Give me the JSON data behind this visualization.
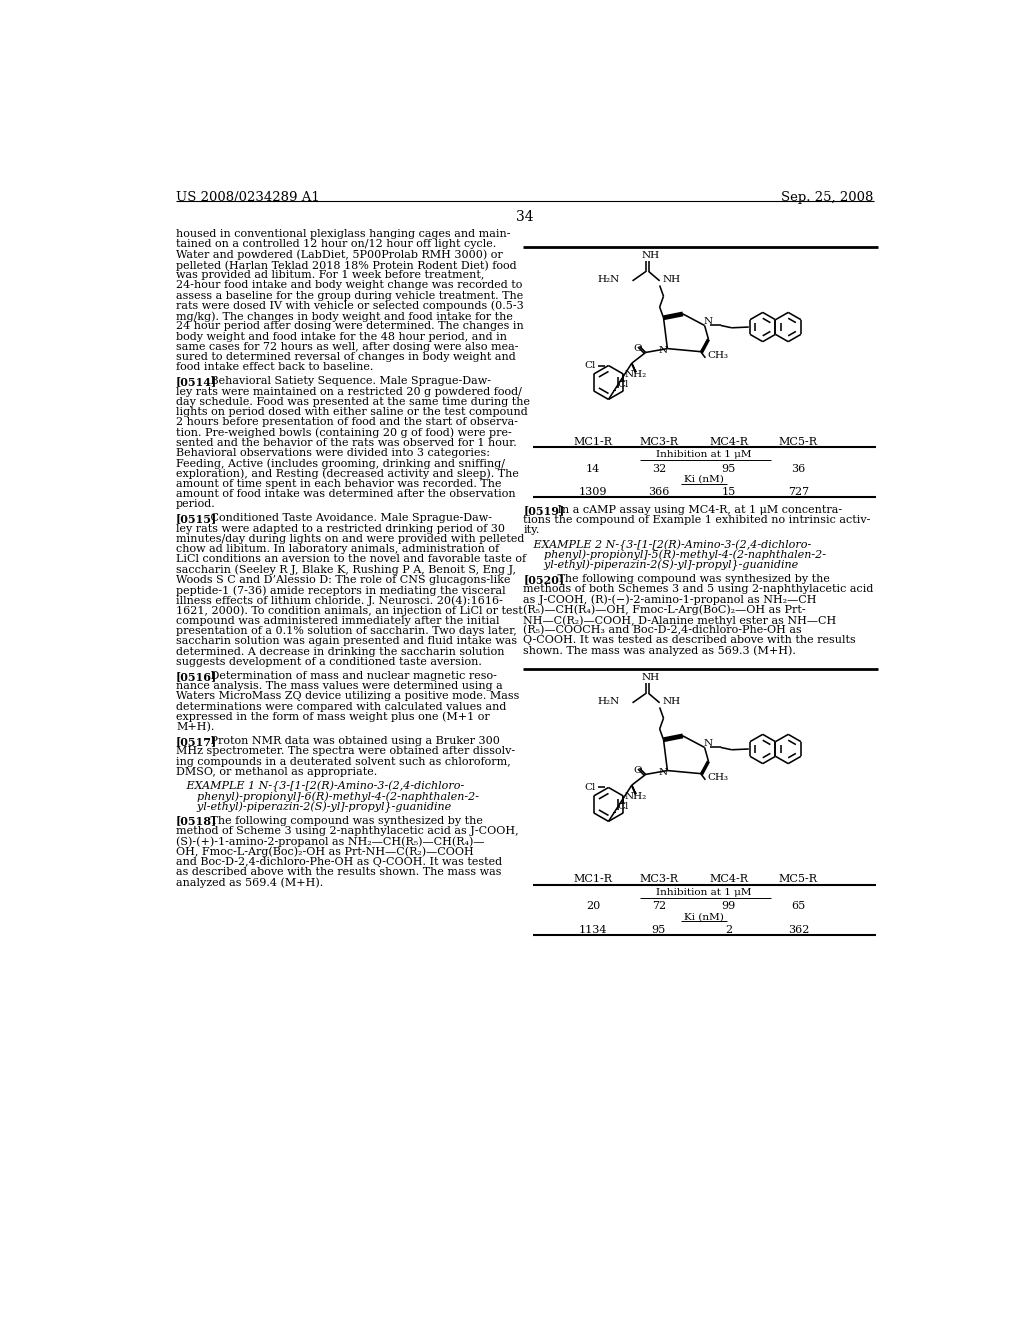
{
  "background_color": "#ffffff",
  "page_number": "34",
  "header_left": "US 2008/0234289 A1",
  "header_right": "Sep. 25, 2008",
  "left_column_lines": [
    [
      "body",
      "housed in conventional plexiglass hanging cages and main-"
    ],
    [
      "body",
      "tained on a controlled 12 hour on/12 hour off light cycle."
    ],
    [
      "body",
      "Water and powdered (LabDiet, 5P00Prolab RMH 3000) or"
    ],
    [
      "body",
      "pelleted (Harlan Teklad 2018 18% Protein Rodent Diet) food"
    ],
    [
      "body",
      "was provided ad libitum. For 1 week before treatment,"
    ],
    [
      "body",
      "24-hour food intake and body weight change was recorded to"
    ],
    [
      "body",
      "assess a baseline for the group during vehicle treatment. The"
    ],
    [
      "body",
      "rats were dosed IV with vehicle or selected compounds (0.5-3"
    ],
    [
      "body",
      "mg/kg). The changes in body weight and food intake for the"
    ],
    [
      "body",
      "24 hour period after dosing were determined. The changes in"
    ],
    [
      "body",
      "body weight and food intake for the 48 hour period, and in"
    ],
    [
      "body",
      "same cases for 72 hours as well, after dosing were also mea-"
    ],
    [
      "body",
      "sured to determined reversal of changes in body weight and"
    ],
    [
      "body",
      "food intake effect back to baseline."
    ],
    [
      "gap",
      ""
    ],
    [
      "bold_para",
      "[0514]",
      "   Behavioral Satiety Sequence. Male Sprague-Daw-"
    ],
    [
      "body",
      "ley rats were maintained on a restricted 20 g powdered food/"
    ],
    [
      "body",
      "day schedule. Food was presented at the same time during the"
    ],
    [
      "body",
      "lights on period dosed with either saline or the test compound"
    ],
    [
      "body",
      "2 hours before presentation of food and the start of observa-"
    ],
    [
      "body",
      "tion. Pre-weighed bowls (containing 20 g of food) were pre-"
    ],
    [
      "body",
      "sented and the behavior of the rats was observed for 1 hour."
    ],
    [
      "body",
      "Behavioral observations were divided into 3 categories:"
    ],
    [
      "body",
      "Feeding, Active (includes grooming, drinking and sniffing/"
    ],
    [
      "body",
      "exploration), and Resting (decreased activity and sleep). The"
    ],
    [
      "body",
      "amount of time spent in each behavior was recorded. The"
    ],
    [
      "body",
      "amount of food intake was determined after the observation"
    ],
    [
      "body",
      "period."
    ],
    [
      "gap",
      ""
    ],
    [
      "bold_para",
      "[0515]",
      "   Conditioned Taste Avoidance. Male Sprague-Daw-"
    ],
    [
      "body",
      "ley rats were adapted to a restricted drinking period of 30"
    ],
    [
      "body",
      "minutes/day during lights on and were provided with pelleted"
    ],
    [
      "body",
      "chow ad libitum. In laboratory animals, administration of"
    ],
    [
      "body",
      "LiCl conditions an aversion to the novel and favorable taste of"
    ],
    [
      "body",
      "saccharin (Seeley R J, Blake K, Rushing P A, Benoit S, Eng J,"
    ],
    [
      "body",
      "Woods S C and D’Alessio D: The role of CNS glucagons-like"
    ],
    [
      "body",
      "peptide-1 (7-36) amide receptors in mediating the visceral"
    ],
    [
      "body",
      "illness effects of lithium chloride. J. Neurosci. 20(4):1616-"
    ],
    [
      "body",
      "1621, 2000). To condition animals, an injection of LiCl or test"
    ],
    [
      "body",
      "compound was administered immediately after the initial"
    ],
    [
      "body",
      "presentation of a 0.1% solution of saccharin. Two days later,"
    ],
    [
      "body",
      "saccharin solution was again presented and fluid intake was"
    ],
    [
      "body",
      "determined. A decrease in drinking the saccharin solution"
    ],
    [
      "body",
      "suggests development of a conditioned taste aversion."
    ],
    [
      "gap",
      ""
    ],
    [
      "bold_para",
      "[0516]",
      "   Determination of mass and nuclear magnetic reso-"
    ],
    [
      "body",
      "nance analysis. The mass values were determined using a"
    ],
    [
      "body",
      "Waters MicroMass ZQ device utilizing a positive mode. Mass"
    ],
    [
      "body",
      "determinations were compared with calculated values and"
    ],
    [
      "body",
      "expressed in the form of mass weight plus one (M+1 or"
    ],
    [
      "body",
      "M+H)."
    ],
    [
      "gap",
      ""
    ],
    [
      "bold_para",
      "[0517]",
      "   Proton NMR data was obtained using a Bruker 300"
    ],
    [
      "body",
      "MHz spectrometer. The spectra were obtained after dissolv-"
    ],
    [
      "body",
      "ing compounds in a deuterated solvent such as chloroform,"
    ],
    [
      "body",
      "DMSO, or methanol as appropriate."
    ],
    [
      "gap",
      ""
    ],
    [
      "example",
      "   EXAMPLE 1 N-{3-[1-[2(R)-Amino-3-(2,4-dichloro-"
    ],
    [
      "example",
      "      phenyl)-propionyl]-6(R)-methyl-4-(2-naphthalen-2-"
    ],
    [
      "example",
      "      yl-ethyl)-piperazin-2(S)-yl]-propyl}-guanidine"
    ],
    [
      "gap",
      ""
    ],
    [
      "bold_para",
      "[0518]",
      "   The following compound was synthesized by the"
    ],
    [
      "body",
      "method of Scheme 3 using 2-naphthylacetic acid as J-COOH,"
    ],
    [
      "body",
      "(S)-(+)-1-amino-2-propanol as NH₂—CH(R₅)—CH(R₄)—"
    ],
    [
      "body",
      "OH, Fmoc-L-Arg(Boc)₂-OH as Prt-NH—C(R₂)—COOH"
    ],
    [
      "body",
      "and Boc-D-2,4-dichloro-Phe-OH as Q-COOH. It was tested"
    ],
    [
      "body",
      "as described above with the results shown. The mass was"
    ],
    [
      "body",
      "analyzed as 569.4 (M+H)."
    ]
  ],
  "right_col_after_table1": [
    [
      "bold_para",
      "[0519]",
      "   In a cAMP assay using MC4-R, at 1 μM concentra-"
    ],
    [
      "body",
      "tions the compound of Example 1 exhibited no intrinsic activ-"
    ],
    [
      "body",
      "ity."
    ],
    [
      "gap",
      ""
    ],
    [
      "example",
      "   EXAMPLE 2 N-{3-[1-[2(R)-Amino-3-(2,4-dichloro-"
    ],
    [
      "example",
      "      phenyl)-propionyl]-5(R)-methyl-4-(2-naphthalen-2-"
    ],
    [
      "example",
      "      yl-ethyl)-piperazin-2(S)-yl]-propyl}-guanidine"
    ],
    [
      "gap",
      ""
    ],
    [
      "bold_para",
      "[0520]",
      "   The following compound was synthesized by the"
    ],
    [
      "body",
      "methods of both Schemes 3 and 5 using 2-naphthylacetic acid"
    ],
    [
      "body",
      "as J-COOH, (R)-(−)-2-amino-1-propanol as NH₂—CH"
    ],
    [
      "body",
      "(R₅)—CH(R₄)—OH, Fmoc-L-Arg(BoC)₂—OH as Prt-"
    ],
    [
      "body",
      "NH—C(R₂)—COOH, D-Alanine methyl ester as NH—CH"
    ],
    [
      "body",
      "(R₅)—COOCH₃ and Boc-D-2,4-dichloro-Phe-OH as"
    ],
    [
      "body",
      "Q-COOH. It was tested as described above with the results"
    ],
    [
      "body",
      "shown. The mass was analyzed as 569.3 (M+H)."
    ]
  ],
  "table1": {
    "headers": [
      "MC1-R",
      "MC3-R",
      "MC4-R",
      "MC5-R"
    ],
    "inhibition_label": "Inhibition at 1 μM",
    "inhibition_values": [
      "14",
      "32",
      "95",
      "36"
    ],
    "ki_label": "Ki (nM)",
    "ki_values": [
      "1309",
      "366",
      "15",
      "727"
    ]
  },
  "table2": {
    "headers": [
      "MC1-R",
      "MC3-R",
      "MC4-R",
      "MC5-R"
    ],
    "inhibition_label": "Inhibition at 1 μM",
    "inhibition_values": [
      "20",
      "72",
      "99",
      "65"
    ],
    "ki_label": "Ki (nM)",
    "ki_values": [
      "1134",
      "95",
      "2",
      "362"
    ]
  }
}
